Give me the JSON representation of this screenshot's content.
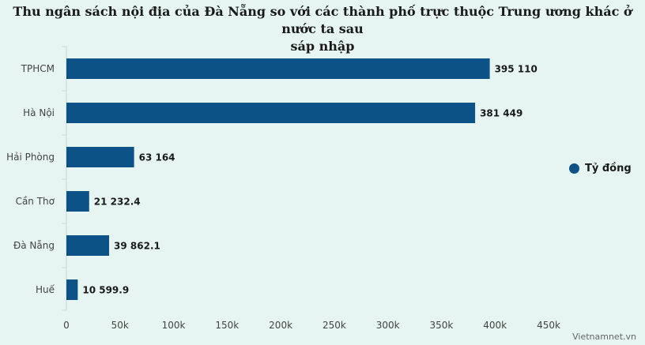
{
  "chart_data": {
    "type": "bar",
    "orientation": "horizontal",
    "title": "Thu ngân sách nội địa của Đà Nẵng so với các thành phố trực thuộc Trung ương khác ở nước ta sau sáp nhập",
    "categories": [
      "TPHCM",
      "Hà Nội",
      "Hải Phòng",
      "Cần Thơ",
      "Đà Nẵng",
      "Huế"
    ],
    "series": [
      {
        "name": "Tỷ đồng",
        "values": [
          395110,
          381449,
          63164,
          21232.4,
          39862.1,
          10599.9
        ],
        "labels": [
          "395 110",
          "381 449",
          "63 164",
          "21 232.4",
          "39 862.1",
          "10 599.9"
        ]
      }
    ],
    "xlim": [
      0,
      450000
    ],
    "xticks": [
      0,
      50000,
      100000,
      150000,
      200000,
      250000,
      300000,
      350000,
      400000,
      450000
    ],
    "xtick_labels": [
      "0",
      "50k",
      "100k",
      "150k",
      "200k",
      "250k",
      "300k",
      "350k",
      "400k",
      "450k"
    ],
    "grid": false,
    "legend_position": "right",
    "bar_color": "#0d5287"
  },
  "credit": "Vietnamnet.vn"
}
